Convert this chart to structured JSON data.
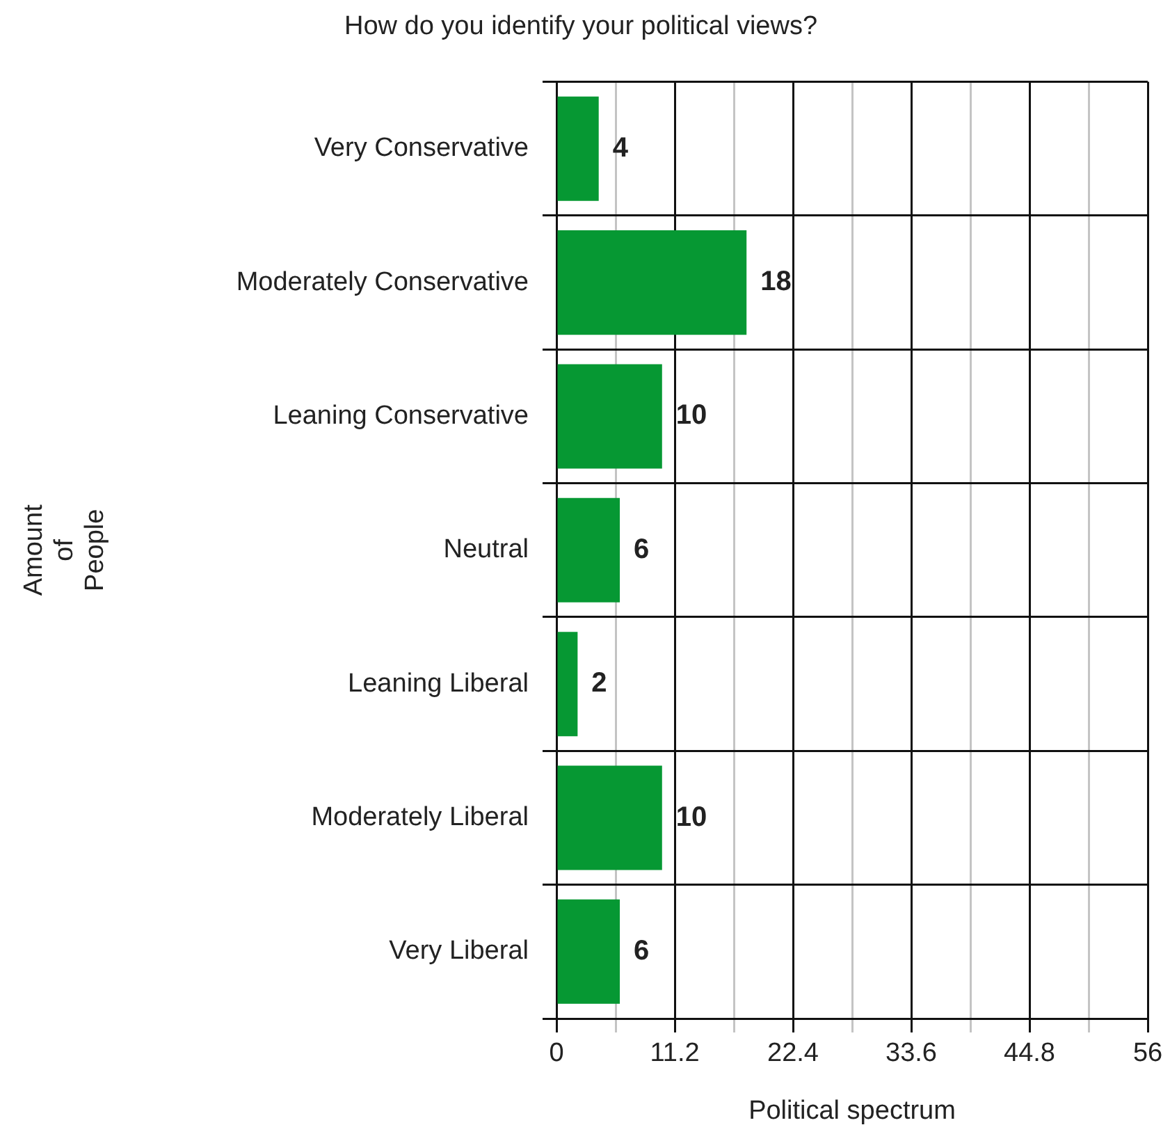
{
  "chart_data": {
    "type": "bar",
    "orientation": "horizontal",
    "title": "How do you identify your political views?",
    "xlabel": "Political spectrum",
    "ylabel": "Amount of People",
    "categories": [
      "Very Conservative",
      "Moderately Conservative",
      "Leaning Conservative",
      "Neutral",
      "Leaning Liberal",
      "Moderately Liberal",
      "Very Liberal"
    ],
    "values": [
      4,
      18,
      10,
      6,
      2,
      10,
      6
    ],
    "color": "#069833",
    "xlim": [
      0,
      56
    ],
    "xticks": [
      0,
      {
        "value": 5.6,
        "label": null
      },
      11.2,
      {
        "value": 16.8,
        "label": null
      },
      22.4,
      {
        "value": 28,
        "label": null
      },
      33.6,
      {
        "value": 39.2,
        "label": null
      },
      44.8,
      {
        "value": 50.4,
        "label": null
      },
      56
    ],
    "grid": true,
    "data_labels": true,
    "legend": false
  }
}
